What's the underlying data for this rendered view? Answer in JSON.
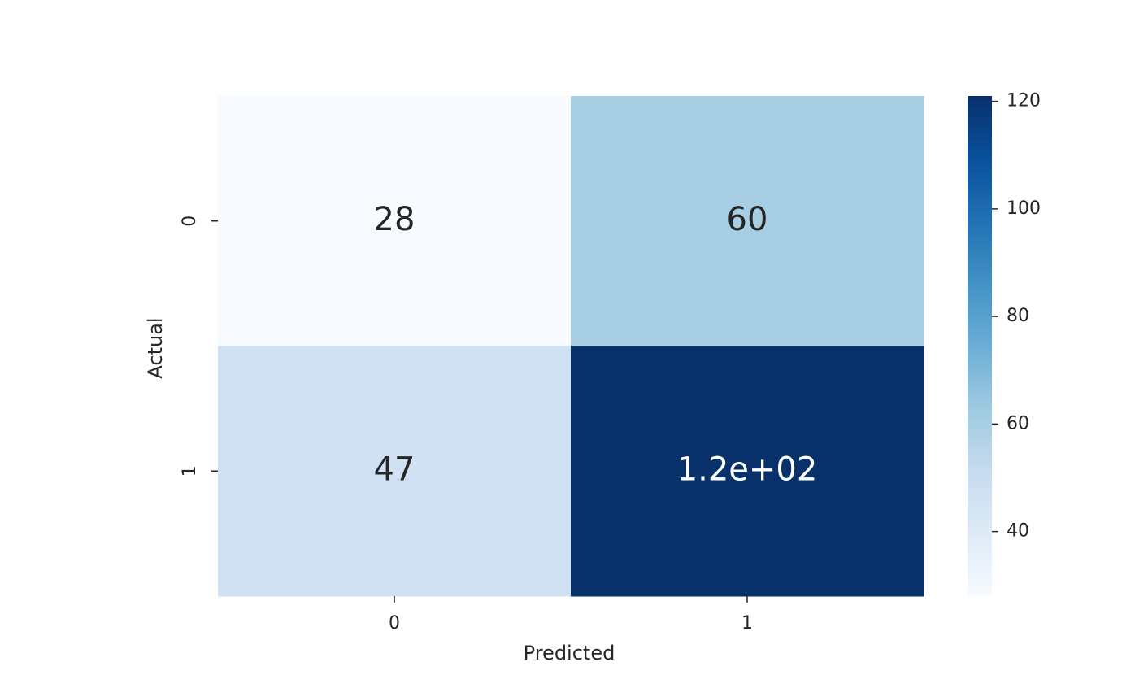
{
  "chart_data": {
    "type": "heatmap",
    "x_label": "Predicted",
    "y_label": "Actual",
    "x_categories": [
      "0",
      "1"
    ],
    "y_categories": [
      "0",
      "1"
    ],
    "values": [
      [
        28,
        60
      ],
      [
        47,
        121
      ]
    ],
    "value_labels": [
      [
        "28",
        "60"
      ],
      [
        "47",
        "1.2e+02"
      ]
    ],
    "colormap": [
      "#f7fbff",
      "#deebf7",
      "#c6dbef",
      "#9ecae1",
      "#6baed6",
      "#4292c6",
      "#2171b5",
      "#08519c",
      "#08306b"
    ],
    "clim": [
      28,
      121
    ],
    "cticks": [
      40,
      60,
      80,
      100,
      120
    ]
  }
}
